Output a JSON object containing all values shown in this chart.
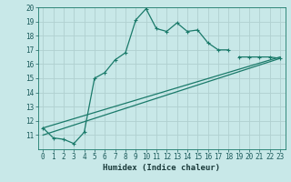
{
  "title": "",
  "xlabel": "Humidex (Indice chaleur)",
  "bg_color": "#c8e8e8",
  "grid_color": "#b0d0d0",
  "line_color": "#1a7a6a",
  "xlim": [
    -0.5,
    23.5
  ],
  "ylim": [
    10,
    20
  ],
  "xticks": [
    0,
    1,
    2,
    3,
    4,
    5,
    6,
    7,
    8,
    9,
    10,
    11,
    12,
    13,
    14,
    15,
    16,
    17,
    18,
    19,
    20,
    21,
    22,
    23
  ],
  "yticks": [
    11,
    12,
    13,
    14,
    15,
    16,
    17,
    18,
    19,
    20
  ],
  "series0_x": [
    0,
    1,
    2,
    3,
    4,
    5,
    6,
    7,
    8,
    9,
    10,
    11,
    12,
    13,
    14,
    15,
    16,
    17,
    18
  ],
  "series0_y": [
    11.5,
    10.8,
    10.7,
    10.4,
    11.2,
    15.0,
    15.4,
    16.3,
    16.8,
    19.1,
    19.9,
    18.5,
    18.3,
    18.9,
    18.3,
    18.4,
    17.5,
    17.0,
    17.0
  ],
  "series1_x": [
    19,
    20,
    21,
    22,
    23
  ],
  "series1_y": [
    16.5,
    16.5,
    16.5,
    16.5,
    16.4
  ],
  "line1_x": [
    0,
    23
  ],
  "line1_y": [
    11.0,
    16.4
  ],
  "line2_x": [
    0,
    23
  ],
  "line2_y": [
    11.5,
    16.5
  ],
  "xlabel_fontsize": 6.5,
  "tick_fontsize": 5.5
}
